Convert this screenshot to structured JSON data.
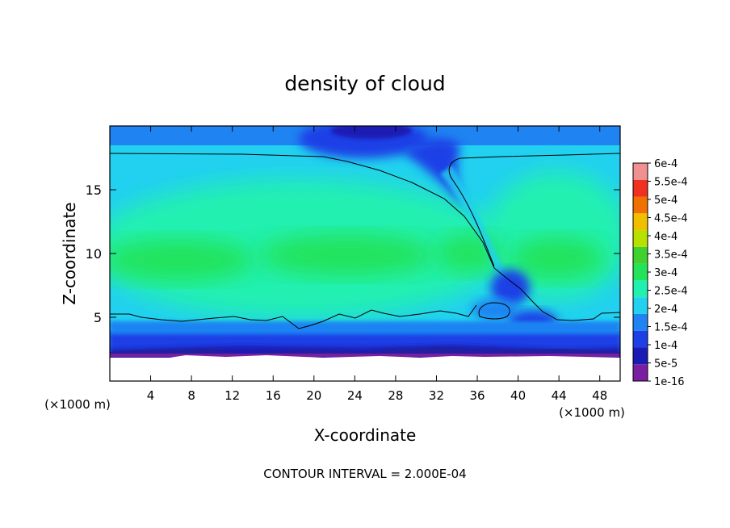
{
  "chart_data": {
    "type": "heatmap",
    "title": "density of cloud",
    "xlabel": "X-coordinate",
    "ylabel": "Z-coordinate",
    "x_unit": "(×1000 m)",
    "x_unit_right": "(×1000 m)",
    "xlim": [
      0,
      50
    ],
    "ylim": [
      0,
      20
    ],
    "xticks": [
      4,
      8,
      12,
      16,
      20,
      24,
      28,
      32,
      36,
      40,
      44,
      48
    ],
    "yticks": [
      5,
      10,
      15
    ],
    "colorbar": {
      "labels": [
        "1e-16",
        "5e-5",
        "1e-4",
        "1.5e-4",
        "2e-4",
        "2.5e-4",
        "3e-4",
        "3.5e-4",
        "4e-4",
        "4.5e-4",
        "5e-4",
        "5.5e-4",
        "6e-4"
      ],
      "colors": [
        "#7a1fa2",
        "#1a1ab4",
        "#1f3fe6",
        "#1f84f2",
        "#22d0f0",
        "#20f0b0",
        "#22e35a",
        "#40d030",
        "#b8e000",
        "#f0c000",
        "#f07000",
        "#f03020",
        "#f09090"
      ]
    },
    "contour_levels": [
      0.0002
    ],
    "footer": "CONTOUR INTERVAL = 2.000E-04"
  }
}
